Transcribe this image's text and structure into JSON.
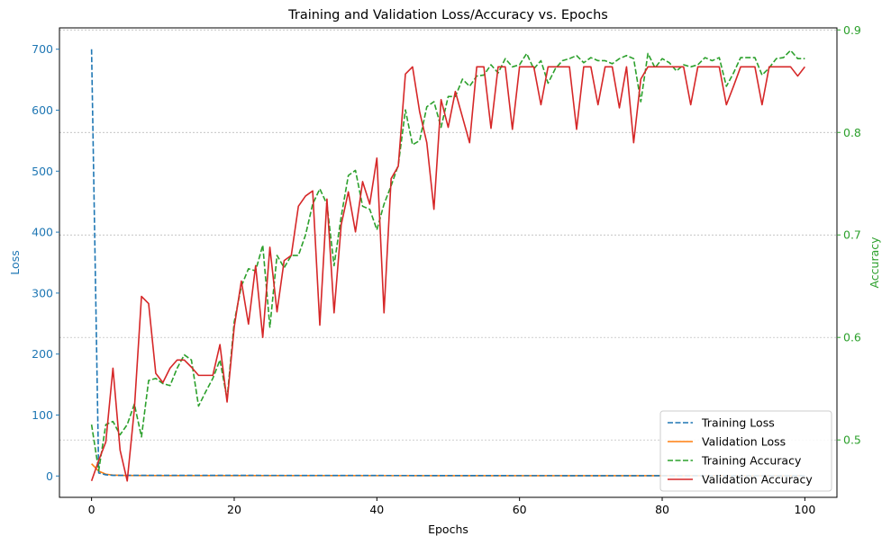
{
  "chart_data": {
    "type": "line",
    "title": "Training and Validation Loss/Accuracy vs. Epochs",
    "xlabel": "Epochs",
    "ylabel_left": "Loss",
    "ylabel_right": "Accuracy",
    "xlim": [
      -4.5,
      104.5
    ],
    "ylim_left": [
      -35,
      735
    ],
    "ylim_right": [
      0.444,
      0.902
    ],
    "xticks": [
      0,
      20,
      40,
      60,
      80,
      100
    ],
    "yticks_left": [
      0,
      100,
      200,
      300,
      400,
      500,
      600,
      700
    ],
    "yticks_right": [
      0.5,
      0.6,
      0.7,
      0.8,
      0.9
    ],
    "grid": "right-axis horizontal dotted",
    "legend_position": "lower-right",
    "colors": {
      "training_loss": "#1f77b4",
      "validation_loss": "#ff7f0e",
      "training_accuracy": "#2ca02c",
      "validation_accuracy": "#d62728",
      "left_axis": "#1f77b4",
      "right_axis": "#2ca02c"
    },
    "series": [
      {
        "name": "Training Loss",
        "axis": "left",
        "style": "dashed",
        "x": [
          0,
          1,
          2,
          3,
          4,
          5,
          10,
          20,
          40,
          60,
          80,
          100
        ],
        "values": [
          700,
          5,
          2,
          1,
          1,
          1,
          1,
          1,
          0.8,
          0.6,
          0.5,
          0.5
        ]
      },
      {
        "name": "Validation Loss",
        "axis": "left",
        "style": "solid",
        "x": [
          0,
          1,
          2,
          3,
          4,
          5,
          10,
          20,
          40,
          60,
          80,
          100
        ],
        "values": [
          20,
          8,
          3,
          1.5,
          1,
          0.8,
          0.7,
          0.7,
          0.6,
          0.5,
          0.5,
          0.5
        ]
      },
      {
        "name": "Training Accuracy",
        "axis": "right",
        "style": "dashed",
        "x": [
          0,
          1,
          2,
          3,
          4,
          5,
          6,
          7,
          8,
          9,
          10,
          11,
          12,
          13,
          14,
          15,
          16,
          17,
          18,
          19,
          20,
          21,
          22,
          23,
          24,
          25,
          26,
          27,
          28,
          29,
          30,
          31,
          32,
          33,
          34,
          35,
          36,
          37,
          38,
          39,
          40,
          41,
          42,
          43,
          44,
          45,
          46,
          47,
          48,
          49,
          50,
          51,
          52,
          53,
          54,
          55,
          56,
          57,
          58,
          59,
          60,
          61,
          62,
          63,
          64,
          65,
          66,
          67,
          68,
          69,
          70,
          71,
          72,
          73,
          74,
          75,
          76,
          77,
          78,
          79,
          80,
          81,
          82,
          83,
          84,
          85,
          86,
          87,
          88,
          89,
          90,
          91,
          92,
          93,
          94,
          95,
          96,
          97,
          98,
          99,
          100
        ],
        "values": [
          0.515,
          0.47,
          0.515,
          0.518,
          0.505,
          0.515,
          0.535,
          0.503,
          0.558,
          0.56,
          0.555,
          0.553,
          0.57,
          0.583,
          0.578,
          0.533,
          0.547,
          0.56,
          0.578,
          0.54,
          0.615,
          0.65,
          0.667,
          0.665,
          0.69,
          0.61,
          0.68,
          0.668,
          0.68,
          0.68,
          0.7,
          0.73,
          0.745,
          0.73,
          0.67,
          0.718,
          0.758,
          0.763,
          0.728,
          0.725,
          0.705,
          0.73,
          0.748,
          0.768,
          0.822,
          0.788,
          0.792,
          0.825,
          0.83,
          0.805,
          0.835,
          0.835,
          0.852,
          0.845,
          0.855,
          0.856,
          0.866,
          0.858,
          0.872,
          0.864,
          0.866,
          0.877,
          0.862,
          0.87,
          0.848,
          0.862,
          0.87,
          0.872,
          0.875,
          0.868,
          0.873,
          0.87,
          0.87,
          0.867,
          0.872,
          0.875,
          0.872,
          0.83,
          0.877,
          0.863,
          0.872,
          0.868,
          0.86,
          0.866,
          0.864,
          0.866,
          0.873,
          0.87,
          0.873,
          0.845,
          0.858,
          0.873,
          0.873,
          0.873,
          0.856,
          0.863,
          0.872,
          0.873,
          0.88,
          0.872,
          0.872
        ]
      },
      {
        "name": "Validation Accuracy",
        "axis": "right",
        "style": "solid",
        "x": [
          0,
          1,
          2,
          3,
          4,
          5,
          6,
          7,
          8,
          9,
          10,
          11,
          12,
          13,
          14,
          15,
          16,
          17,
          18,
          19,
          20,
          21,
          22,
          23,
          24,
          25,
          26,
          27,
          28,
          29,
          30,
          31,
          32,
          33,
          34,
          35,
          36,
          37,
          38,
          39,
          40,
          41,
          42,
          43,
          44,
          45,
          46,
          47,
          48,
          49,
          50,
          51,
          52,
          53,
          54,
          55,
          56,
          57,
          58,
          59,
          60,
          61,
          62,
          63,
          64,
          65,
          66,
          67,
          68,
          69,
          70,
          71,
          72,
          73,
          74,
          75,
          76,
          77,
          78,
          79,
          80,
          81,
          82,
          83,
          84,
          85,
          86,
          87,
          88,
          89,
          90,
          91,
          92,
          93,
          94,
          95,
          96,
          97,
          98,
          99,
          100
        ],
        "values": [
          0.46,
          0.48,
          0.498,
          0.57,
          0.49,
          0.46,
          0.53,
          0.64,
          0.633,
          0.565,
          0.556,
          0.57,
          0.578,
          0.578,
          0.571,
          0.563,
          0.563,
          0.563,
          0.593,
          0.537,
          0.61,
          0.655,
          0.613,
          0.67,
          0.6,
          0.688,
          0.625,
          0.675,
          0.68,
          0.728,
          0.738,
          0.743,
          0.612,
          0.735,
          0.624,
          0.71,
          0.742,
          0.703,
          0.752,
          0.73,
          0.775,
          0.624,
          0.755,
          0.767,
          0.857,
          0.864,
          0.82,
          0.79,
          0.725,
          0.832,
          0.805,
          0.84,
          0.815,
          0.79,
          0.864,
          0.864,
          0.804,
          0.864,
          0.864,
          0.803,
          0.864,
          0.864,
          0.864,
          0.827,
          0.864,
          0.864,
          0.864,
          0.864,
          0.803,
          0.864,
          0.864,
          0.827,
          0.864,
          0.864,
          0.824,
          0.864,
          0.79,
          0.852,
          0.864,
          0.864,
          0.864,
          0.864,
          0.864,
          0.864,
          0.827,
          0.864,
          0.864,
          0.864,
          0.864,
          0.827,
          0.845,
          0.864,
          0.864,
          0.864,
          0.827,
          0.864,
          0.864,
          0.864,
          0.864,
          0.855,
          0.864
        ]
      }
    ]
  }
}
